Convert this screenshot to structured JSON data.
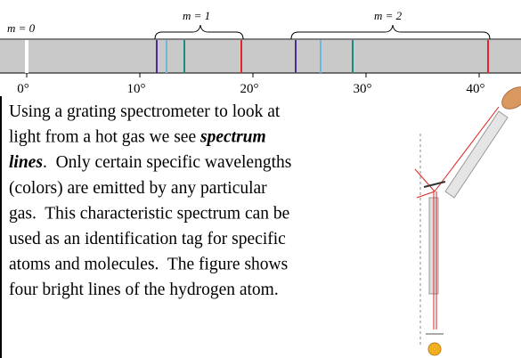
{
  "figure": {
    "labels": {
      "m0": "m = 0",
      "m1": "m = 1",
      "m2": "m = 2"
    },
    "ticks": [
      "0°",
      "10°",
      "20°",
      "30°",
      "40°"
    ]
  },
  "text": {
    "lines": [
      [
        {
          "t": "Using a grating spectrometer to look at"
        }
      ],
      [
        {
          "t": "light from a hot gas we see "
        },
        {
          "t": "spectrum",
          "em": true
        }
      ],
      [
        {
          "t": "lines",
          "em": true
        },
        {
          "t": ".  Only certain specific wavelengths"
        }
      ],
      [
        {
          "t": "(colors) are emitted by any particular"
        }
      ],
      [
        {
          "t": "gas.  This characteristic spectrum can be"
        }
      ],
      [
        {
          "t": "used as an identification tag for specific"
        }
      ],
      [
        {
          "t": "atoms and molecules.  The figure shows"
        }
      ],
      [
        {
          "t": "four bright lines of the hydrogen atom."
        }
      ]
    ]
  }
}
